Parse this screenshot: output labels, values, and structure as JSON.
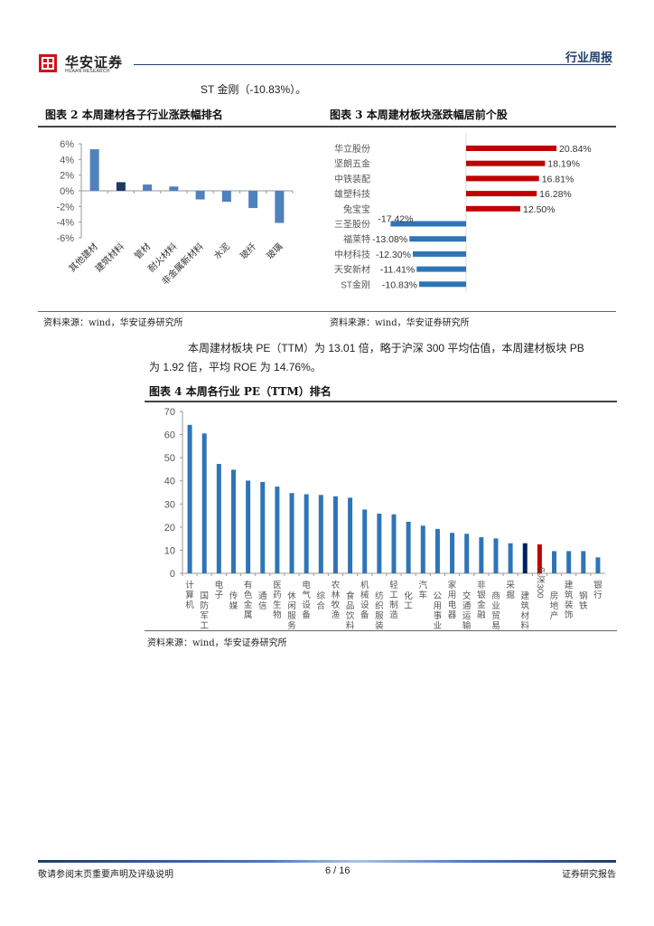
{
  "header": {
    "logo_cn": "华安证券",
    "logo_en": "HUAAN RESEARCH",
    "report_type": "行业周报"
  },
  "body": {
    "intro_line": "ST 金刚（-10.83%）。",
    "paragraph_line1": "本周建材板块 PE（TTM）为 13.01 倍，略于沪深 300 平均估值，本周建材板块 PB",
    "paragraph_line2": "为 1.92 倍，平均 ROE 为 14.76%。"
  },
  "figures": {
    "fig2": {
      "title": "图表 2 本周建材各子行业涨跌幅排名",
      "source": "资料来源：wind，华安证券研究所"
    },
    "fig3": {
      "title": "图表 3 本周建材板块涨跌幅居前个股",
      "source": "资料来源：wind，华安证券研究所"
    },
    "fig4": {
      "title": "图表 4 本周各行业 PE（TTM）排名",
      "source": "资料来源：wind，华安证券研究所"
    }
  },
  "chart_data": [
    {
      "id": "fig2",
      "type": "bar",
      "title": "本周建材各子行业涨跌幅排名",
      "categories": [
        "其他建材",
        "建筑材料",
        "管材",
        "耐火材料",
        "非金属新材料",
        "水泥",
        "玻纤",
        "玻璃"
      ],
      "values": [
        5.3,
        1.1,
        0.8,
        0.55,
        -1.1,
        -1.4,
        -2.2,
        -4.1
      ],
      "highlight_index": 1,
      "colors": {
        "default": "#4f81bd",
        "highlight": "#1f3864"
      },
      "ylim": [
        -6,
        6
      ],
      "yticks": [
        "6%",
        "4%",
        "2%",
        "0%",
        "-2%",
        "-4%",
        "-6%"
      ],
      "xlabel": "",
      "ylabel": "",
      "grid": false
    },
    {
      "id": "fig3",
      "type": "bar",
      "orientation": "horizontal",
      "title": "本周建材板块涨跌幅居前个股",
      "categories": [
        "华立股份",
        "坚朗五金",
        "中铁装配",
        "雄塑科技",
        "兔宝宝",
        "三圣股份",
        "福莱特",
        "中材科技",
        "天安新材",
        "ST金刚"
      ],
      "values": [
        20.84,
        18.19,
        16.81,
        16.28,
        12.5,
        -17.42,
        -13.08,
        -12.3,
        -11.41,
        -10.83
      ],
      "labels": [
        "20.84%",
        "18.19%",
        "16.81%",
        "16.28%",
        "12.50%",
        "-17.42%",
        "-13.08%",
        "-12.30%",
        "-11.41%",
        "-10.83%"
      ],
      "colors": {
        "positive": "#c00000",
        "negative": "#2e75b6"
      },
      "grid": false
    },
    {
      "id": "fig4",
      "type": "bar",
      "title": "本周各行业 PE（TTM）排名",
      "categories": [
        "计算机",
        "国防军工",
        "电子",
        "传媒",
        "有色金属",
        "通信",
        "医药生物",
        "休闲服务",
        "电气设备",
        "综合",
        "农林牧渔",
        "食品饮料",
        "机械设备",
        "纺织服装",
        "轻工制造",
        "化工",
        "汽车",
        "公用事业",
        "家用电器",
        "交通运输",
        "非银金融",
        "商业贸易",
        "采掘",
        "建筑材料",
        "沪深300",
        "房地产",
        "建筑装饰",
        "钢铁",
        "银行"
      ],
      "values": [
        64.2,
        60.5,
        47.3,
        44.8,
        40.1,
        39.5,
        37.5,
        34.7,
        34.2,
        33.9,
        33.3,
        32.7,
        27.6,
        25.8,
        25.5,
        22.3,
        20.6,
        19.2,
        17.5,
        17.1,
        15.6,
        15.1,
        13.0,
        13.01,
        12.5,
        9.6,
        9.6,
        9.6,
        6.9
      ],
      "highlight": {
        "建筑材料": "#002060",
        "沪深300": "#c00000"
      },
      "default_color": "#2e75b6",
      "ylim": [
        0,
        70
      ],
      "yticks": [
        0,
        10,
        20,
        30,
        40,
        50,
        60,
        70
      ],
      "xlabel": "",
      "ylabel": "",
      "grid": false
    }
  ],
  "footer": {
    "disclaimer": "敬请参阅末页重要声明及评级说明",
    "page": "6 / 16",
    "doc_type": "证券研究报告"
  }
}
